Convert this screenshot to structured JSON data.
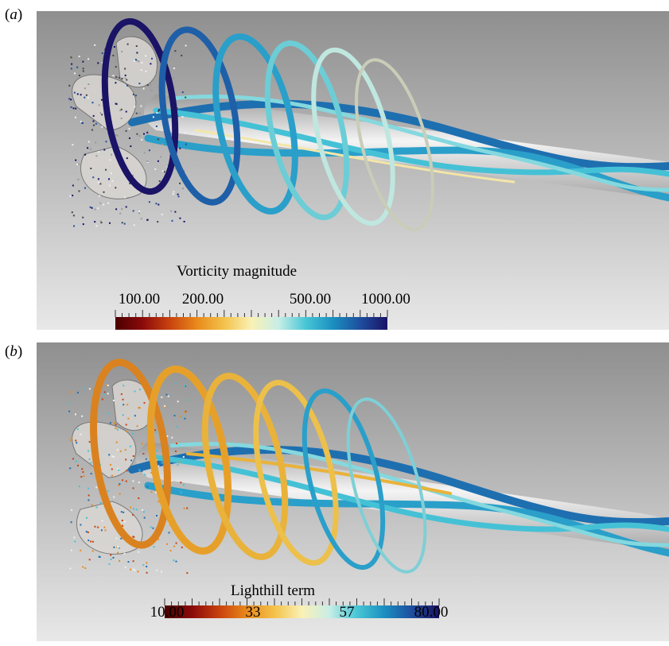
{
  "figure": {
    "panels": [
      {
        "label_open": "(",
        "label_letter": "a",
        "label_close": ")",
        "colorbar": {
          "title": "Vorticity magnitude",
          "tick_labels": [
            "100.00",
            "200.00",
            "500.00",
            "1000.00"
          ]
        }
      },
      {
        "label_open": "(",
        "label_letter": "b",
        "label_close": ")",
        "colorbar": {
          "title": "Lighthill term",
          "tick_labels": [
            "10.00",
            "33",
            "57",
            "80.00"
          ]
        }
      }
    ],
    "colors": {
      "background_top": "#8f8f8f",
      "background_bottom": "#e6e6e6",
      "colormap": [
        "#4a0000",
        "#8b0a0a",
        "#c9420e",
        "#e98a1c",
        "#f3c24a",
        "#faf1b5",
        "#c8eee6",
        "#48c6d6",
        "#1a8fc0",
        "#1e4e9e",
        "#1a1366"
      ]
    }
  }
}
